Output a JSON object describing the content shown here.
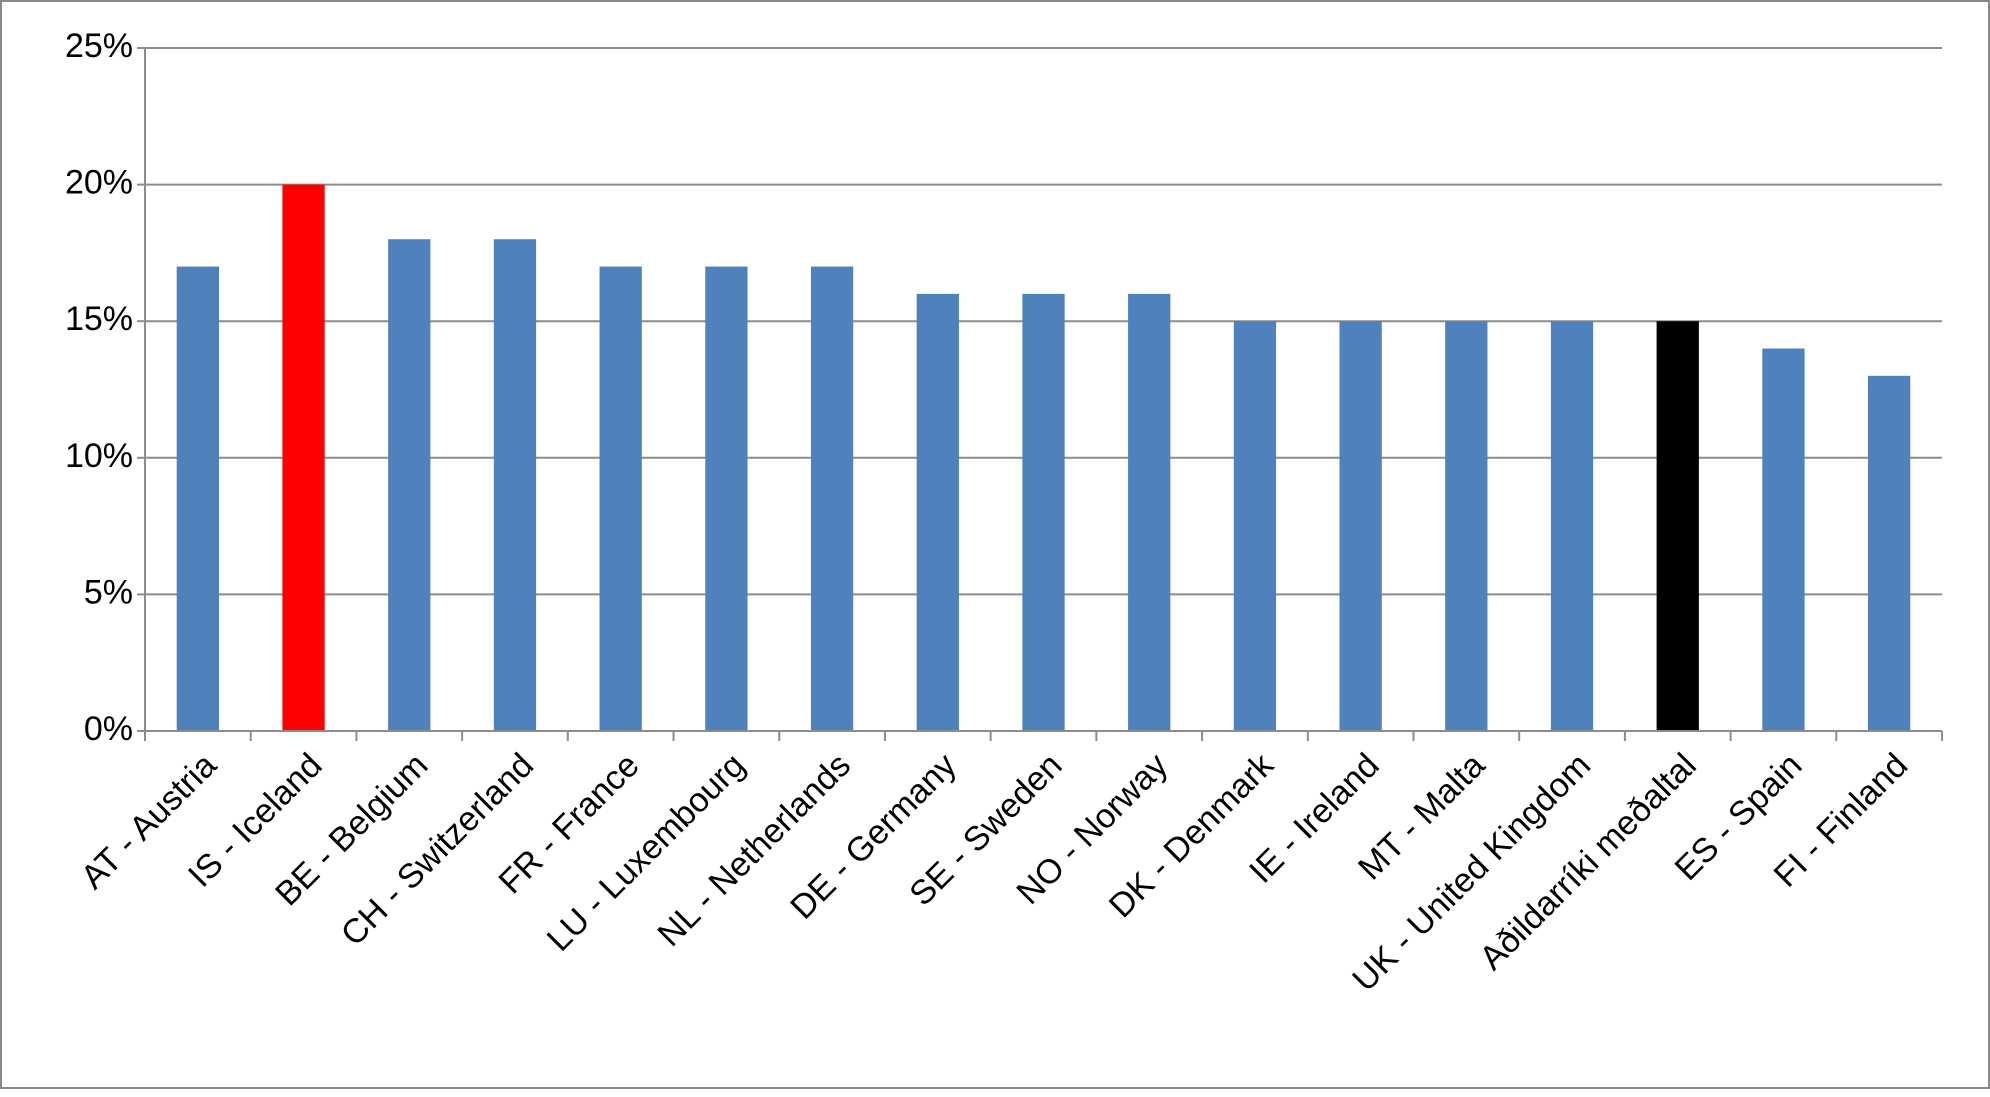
{
  "chart_data": {
    "type": "bar",
    "categories": [
      "AT - Austria",
      "IS - Iceland",
      "BE - Belgium",
      "CH - Switzerland",
      "FR - France",
      "LU - Luxembourg",
      "NL - Netherlands",
      "DE - Germany",
      "SE - Sweden",
      "NO - Norway",
      "DK - Denmark",
      "IE - Ireland",
      "MT - Malta",
      "UK - United Kingdom",
      "Aðildarríki meðaltal",
      "ES - Spain",
      "FI - Finland"
    ],
    "values": [
      17,
      20,
      18,
      18,
      17,
      17,
      17,
      16,
      16,
      16,
      15,
      15,
      15,
      15,
      15,
      14,
      13
    ],
    "colors": [
      "#4f81bd",
      "#ff0000",
      "#4f81bd",
      "#4f81bd",
      "#4f81bd",
      "#4f81bd",
      "#4f81bd",
      "#4f81bd",
      "#4f81bd",
      "#4f81bd",
      "#4f81bd",
      "#4f81bd",
      "#4f81bd",
      "#4f81bd",
      "#000000",
      "#4f81bd",
      "#4f81bd"
    ],
    "ylim": [
      0,
      25
    ],
    "yticks": [
      {
        "value": 0,
        "label": "0%"
      },
      {
        "value": 5,
        "label": "5%"
      },
      {
        "value": 10,
        "label": "10%"
      },
      {
        "value": 15,
        "label": "15%"
      },
      {
        "value": 20,
        "label": "20%"
      },
      {
        "value": 25,
        "label": "25%"
      }
    ],
    "grid": true
  }
}
